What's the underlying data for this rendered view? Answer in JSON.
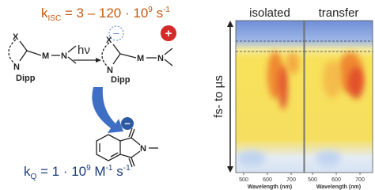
{
  "top_rate": {
    "k": "k",
    "sub": "ISC",
    "expr": " = 3 – 120 · 10",
    "exp": "9",
    "unit": " s",
    "unit_exp": "-1"
  },
  "reactant": {
    "x": "X",
    "n": "N",
    "dipp": "Dipp",
    "metal": "M",
    "amine": "N"
  },
  "light": "hν",
  "product": {
    "x": "X",
    "n": "N",
    "dipp": "Dipp",
    "metal": "M",
    "amine": "N",
    "anion": "–",
    "cation": "+"
  },
  "quencher": {
    "n": "N",
    "charge": "–"
  },
  "bottom_rate": {
    "k": "k",
    "sub": "Q",
    "expr": " = 1 · 10",
    "exp": "9",
    "unit": " M",
    "unit_exp": "-1",
    "unit2": " s",
    "unit2_exp": "-1"
  },
  "heatmaps": {
    "time_axis": "fs- to µs",
    "panels": [
      {
        "title": "isolated",
        "xlabel": "Wavelength (nm)",
        "xticks": [
          500,
          600,
          700
        ]
      },
      {
        "title": "transfer",
        "xlabel": "Wavelength (nm)",
        "xticks": [
          500,
          600,
          700
        ]
      }
    ]
  }
}
